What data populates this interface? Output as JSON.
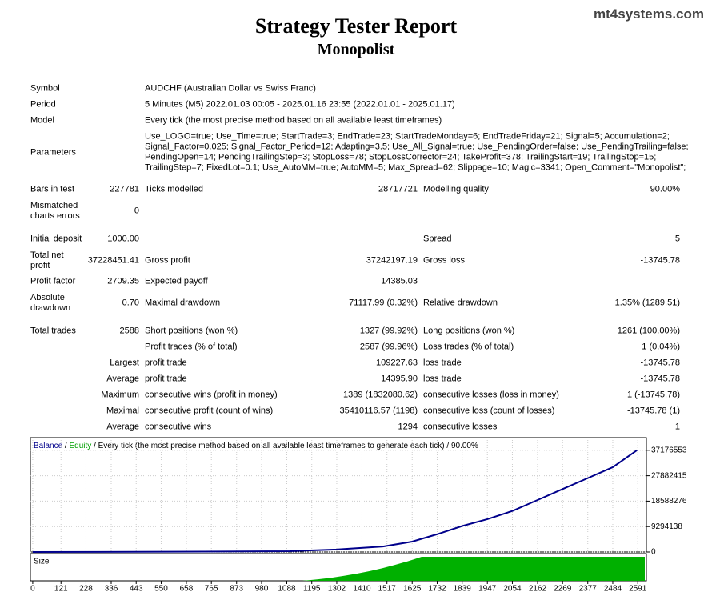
{
  "header": {
    "title": "Strategy Tester Report",
    "subtitle": "Monopolist",
    "site": "mt4systems.com"
  },
  "info": [
    {
      "label": "Symbol",
      "value": "AUDCHF (Australian Dollar vs Swiss Franc)"
    },
    {
      "label": "Period",
      "value": "5 Minutes (M5) 2022.01.03 00:05 - 2025.01.16 23:55 (2022.01.01 - 2025.01.17)"
    },
    {
      "label": "Model",
      "value": "Every tick (the most precise method based on all available least timeframes)"
    }
  ],
  "parameters": {
    "label": "Parameters",
    "lines": [
      "Use_LOGO=true; Use_Time=true; StartTrade=3; EndTrade=23; StartTradeMonday=6; EndTradeFriday=21; Signal=5; Accumulation=2;",
      "Signal_Factor=0.025; Signal_Factor_Period=12; Adapting=3.5; Use_All_Signal=true; Use_PendingOrder=false; Use_PendingTrailing=false;",
      "PendingOpen=14; PendingTrailingStep=3; StopLoss=78; StopLossCorrector=24; TakeProfit=378; TrailingStart=19; TrailingStop=15;",
      "TrailingStep=7; FixedLot=0.1; Use_AutoMM=true; AutoMM=5; Max_Spread=62; Slippage=10; Magic=3341; Open_Comment=\"Monopolist\";"
    ]
  },
  "stats": [
    {
      "label": "Bars in test",
      "value": "227781",
      "label2": "Ticks modelled",
      "value2": "28717721",
      "label3": "Modelling quality",
      "value3": "90.00%"
    },
    {
      "label": "Mismatched charts errors",
      "value": "0"
    },
    {
      "label": "Initial deposit",
      "value": "1000.00",
      "label3": "Spread",
      "value3": "5"
    },
    {
      "label": "Total net profit",
      "value": "37228451.41",
      "label2": "Gross profit",
      "value2": "37242197.19",
      "label3": "Gross loss",
      "value3": "-13745.78"
    },
    {
      "label": "Profit factor",
      "value": "2709.35",
      "label2": "Expected payoff",
      "value2": "14385.03"
    },
    {
      "label": "Absolute drawdown",
      "value": "0.70",
      "label2": "Maximal drawdown",
      "value2": "71117.99 (0.32%)",
      "label3": "Relative drawdown",
      "value3": "1.35% (1289.51)"
    },
    {
      "label": "Total trades",
      "value": "2588",
      "label2": "Short positions (won %)",
      "value2": "1327 (99.92%)",
      "label3": "Long positions (won %)",
      "value3": "1261 (100.00%)"
    },
    {
      "label2": "Profit trades (% of total)",
      "value2": "2587 (99.96%)",
      "label3": "Loss trades (% of total)",
      "value3": "1 (0.04%)"
    },
    {
      "value": "Largest",
      "label2": "profit trade",
      "value2": "109227.63",
      "label3": "loss trade",
      "value3": "-13745.78"
    },
    {
      "value": "Average",
      "label2": "profit trade",
      "value2": "14395.90",
      "label3": "loss trade",
      "value3": "-13745.78"
    },
    {
      "value": "Maximum",
      "label2": "consecutive wins (profit in money)",
      "value2": "1389 (1832080.62)",
      "label3": "consecutive losses (loss in money)",
      "value3": "1 (-13745.78)"
    },
    {
      "value": "Maximal",
      "label2": "consecutive profit (count of wins)",
      "value2": "35410116.57 (1198)",
      "label3": "consecutive loss (count of losses)",
      "value3": "-13745.78 (1)"
    },
    {
      "value": "Average",
      "label2": "consecutive wins",
      "value2": "1294",
      "label3": "consecutive losses",
      "value3": "1"
    }
  ],
  "chart_data": {
    "type": "line",
    "legend": {
      "balance": "Balance",
      "separator": "/",
      "equity": "Equity",
      "description": "Every tick (the most precise method based on all available least timeframes to generate each tick) / 90.00%"
    },
    "size_label": "Size",
    "x": [
      0,
      600,
      1100,
      1300,
      1500,
      1625,
      1732,
      1839,
      1947,
      2054,
      2162,
      2269,
      2377,
      2484,
      2588
    ],
    "series": [
      {
        "name": "Balance",
        "color": "#00008b",
        "values": [
          1000,
          100000,
          300000,
          900000,
          2000000,
          3800000,
          6500000,
          9500000,
          12000000,
          15000000,
          19000000,
          23000000,
          27000000,
          31000000,
          37229451
        ]
      }
    ],
    "xlim": [
      -10,
      2628
    ],
    "xticks": [
      0,
      121,
      228,
      336,
      443,
      550,
      658,
      765,
      873,
      980,
      1088,
      1195,
      1302,
      1410,
      1517,
      1625,
      1732,
      1839,
      1947,
      2054,
      2162,
      2269,
      2377,
      2484,
      2591
    ],
    "ylim": [
      0,
      41800000
    ],
    "yticks": [
      0,
      9294138,
      18588276,
      27882415,
      37176553
    ],
    "grid": true,
    "equity_color": "#00a000"
  }
}
